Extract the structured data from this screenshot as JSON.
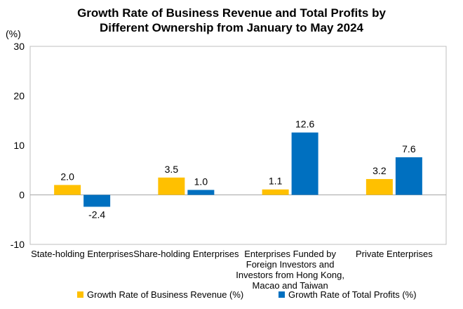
{
  "chart_data": {
    "type": "bar",
    "title_lines": [
      "Growth Rate of Business Revenue and Total Profits by",
      "Different Ownership from January to May 2024"
    ],
    "unit_label": "(%)",
    "categories": [
      [
        "State-holding Enterprises"
      ],
      [
        "Share-holding Enterprises"
      ],
      [
        "Enterprises Funded by",
        "Foreign Investors and",
        "Investors from Hong Kong,",
        "Macao and Taiwan"
      ],
      [
        "Private Enterprises"
      ]
    ],
    "series": [
      {
        "name": "Growth Rate of Business Revenue (%)",
        "values": [
          2.0,
          3.5,
          1.1,
          3.2
        ],
        "labels": [
          "2.0",
          "3.5",
          "1.1",
          "3.2"
        ],
        "color": "#FFC000"
      },
      {
        "name": "Growth Rate of Total Profits (%)",
        "values": [
          -2.4,
          1.0,
          12.6,
          7.6
        ],
        "labels": [
          "-2.4",
          "1.0",
          "12.6",
          "7.6"
        ],
        "color": "#0070C0"
      }
    ],
    "ylim": [
      -10,
      30
    ],
    "yticks": [
      -10,
      0,
      10,
      20,
      30
    ],
    "grid": false,
    "legend_position": "bottom"
  }
}
